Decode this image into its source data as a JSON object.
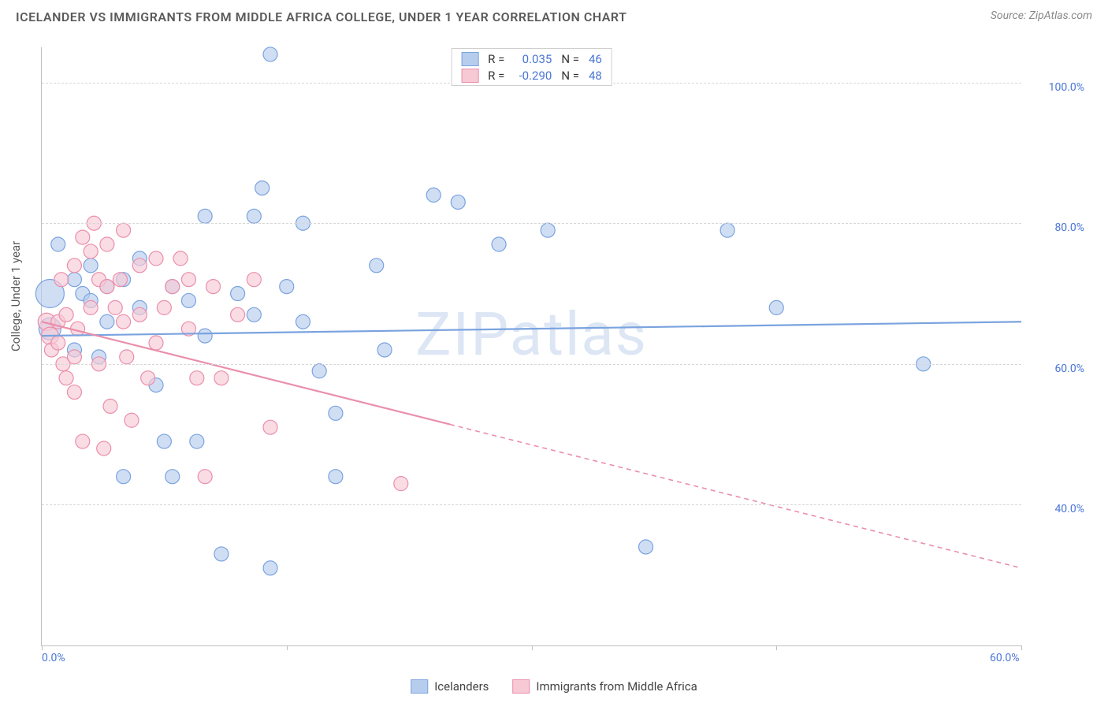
{
  "header": {
    "title": "ICELANDER VS IMMIGRANTS FROM MIDDLE AFRICA COLLEGE, UNDER 1 YEAR CORRELATION CHART",
    "source": "Source: ZipAtlas.com"
  },
  "watermark": "ZIPatlas",
  "chart": {
    "type": "scatter",
    "y_axis_title": "College, Under 1 year",
    "background_color": "#ffffff",
    "grid_color": "#d7d7d7",
    "axis_color": "#bfbfbf",
    "label_color": "#4a76d6",
    "xlim": [
      0,
      60
    ],
    "ylim": [
      20,
      105
    ],
    "x_ticks": [
      0,
      15,
      30,
      45,
      60
    ],
    "x_tick_labels": {
      "0": "0.0%",
      "60": "60.0%"
    },
    "y_gridlines": [
      40,
      60,
      80,
      100
    ],
    "y_tick_labels": {
      "40": "40.0%",
      "60": "60.0%",
      "80": "80.0%",
      "100": "100.0%"
    },
    "series": [
      {
        "key": "icelanders",
        "label": "Icelanders",
        "color_fill": "#b7cdee",
        "color_stroke": "#7aa3df",
        "marker_radius": 9,
        "r_value": "0.035",
        "n_value": "46",
        "trend": {
          "y_at_xmin": 64.0,
          "y_at_xmax": 66.0,
          "solid_until_x": 60
        },
        "points": [
          {
            "x": 0.5,
            "y": 70,
            "r": 18
          },
          {
            "x": 0.5,
            "y": 65,
            "r": 14
          },
          {
            "x": 1,
            "y": 77
          },
          {
            "x": 2,
            "y": 72
          },
          {
            "x": 2.5,
            "y": 70
          },
          {
            "x": 3,
            "y": 69
          },
          {
            "x": 3.5,
            "y": 61
          },
          {
            "x": 4,
            "y": 66
          },
          {
            "x": 4,
            "y": 71
          },
          {
            "x": 5,
            "y": 72
          },
          {
            "x": 5,
            "y": 44
          },
          {
            "x": 6,
            "y": 68
          },
          {
            "x": 7,
            "y": 57
          },
          {
            "x": 7.5,
            "y": 49
          },
          {
            "x": 8,
            "y": 44
          },
          {
            "x": 8,
            "y": 71
          },
          {
            "x": 9,
            "y": 69
          },
          {
            "x": 10,
            "y": 64
          },
          {
            "x": 10,
            "y": 81
          },
          {
            "x": 11,
            "y": 33
          },
          {
            "x": 12,
            "y": 70
          },
          {
            "x": 13,
            "y": 67
          },
          {
            "x": 13,
            "y": 81
          },
          {
            "x": 13.5,
            "y": 85
          },
          {
            "x": 14,
            "y": 31
          },
          {
            "x": 14,
            "y": 104
          },
          {
            "x": 15,
            "y": 71
          },
          {
            "x": 16,
            "y": 66
          },
          {
            "x": 16,
            "y": 80
          },
          {
            "x": 17,
            "y": 59
          },
          {
            "x": 18,
            "y": 44
          },
          {
            "x": 18,
            "y": 53
          },
          {
            "x": 20.5,
            "y": 74
          },
          {
            "x": 21,
            "y": 62
          },
          {
            "x": 24,
            "y": 84
          },
          {
            "x": 25.5,
            "y": 83
          },
          {
            "x": 28,
            "y": 77
          },
          {
            "x": 31,
            "y": 79
          },
          {
            "x": 37,
            "y": 34
          },
          {
            "x": 42,
            "y": 79
          },
          {
            "x": 45,
            "y": 68
          },
          {
            "x": 54,
            "y": 60
          },
          {
            "x": 2,
            "y": 62
          },
          {
            "x": 6,
            "y": 75
          },
          {
            "x": 9.5,
            "y": 49
          },
          {
            "x": 3,
            "y": 74
          }
        ]
      },
      {
        "key": "middle_africa",
        "label": "Immigrants from Middle Africa",
        "color_fill": "#f7c9d5",
        "color_stroke": "#ea8fab",
        "marker_radius": 9,
        "r_value": "-0.290",
        "n_value": "48",
        "trend": {
          "y_at_xmin": 66.0,
          "y_at_xmax": 31.0,
          "solid_until_x": 25
        },
        "points": [
          {
            "x": 0.3,
            "y": 66,
            "r": 11
          },
          {
            "x": 0.5,
            "y": 64,
            "r": 11
          },
          {
            "x": 0.6,
            "y": 62
          },
          {
            "x": 1,
            "y": 66
          },
          {
            "x": 1,
            "y": 63
          },
          {
            "x": 1.2,
            "y": 72
          },
          {
            "x": 1.3,
            "y": 60
          },
          {
            "x": 1.5,
            "y": 67
          },
          {
            "x": 1.5,
            "y": 58
          },
          {
            "x": 2,
            "y": 74
          },
          {
            "x": 2,
            "y": 61
          },
          {
            "x": 2,
            "y": 56
          },
          {
            "x": 2.2,
            "y": 65
          },
          {
            "x": 2.5,
            "y": 78
          },
          {
            "x": 2.5,
            "y": 49
          },
          {
            "x": 3,
            "y": 76
          },
          {
            "x": 3,
            "y": 68
          },
          {
            "x": 3.2,
            "y": 80
          },
          {
            "x": 3.5,
            "y": 60
          },
          {
            "x": 3.5,
            "y": 72
          },
          {
            "x": 3.8,
            "y": 48
          },
          {
            "x": 4,
            "y": 77
          },
          {
            "x": 4,
            "y": 71
          },
          {
            "x": 4.2,
            "y": 54
          },
          {
            "x": 4.5,
            "y": 68
          },
          {
            "x": 4.8,
            "y": 72
          },
          {
            "x": 5,
            "y": 79
          },
          {
            "x": 5,
            "y": 66
          },
          {
            "x": 5.2,
            "y": 61
          },
          {
            "x": 5.5,
            "y": 52
          },
          {
            "x": 6,
            "y": 67
          },
          {
            "x": 6,
            "y": 74
          },
          {
            "x": 6.5,
            "y": 58
          },
          {
            "x": 7,
            "y": 75
          },
          {
            "x": 7,
            "y": 63
          },
          {
            "x": 7.5,
            "y": 68
          },
          {
            "x": 8,
            "y": 71
          },
          {
            "x": 8.5,
            "y": 75
          },
          {
            "x": 9,
            "y": 65
          },
          {
            "x": 9,
            "y": 72
          },
          {
            "x": 9.5,
            "y": 58
          },
          {
            "x": 10,
            "y": 44
          },
          {
            "x": 10.5,
            "y": 71
          },
          {
            "x": 11,
            "y": 58
          },
          {
            "x": 12,
            "y": 67
          },
          {
            "x": 13,
            "y": 72
          },
          {
            "x": 14,
            "y": 51
          },
          {
            "x": 22,
            "y": 43
          }
        ]
      }
    ]
  },
  "legend_top": {
    "r_label": "R =",
    "n_label": "N ="
  },
  "legend_bottom": [
    {
      "swatch_fill": "#b7cdee",
      "swatch_stroke": "#7aa3df",
      "label": "Icelanders"
    },
    {
      "swatch_fill": "#f7c9d5",
      "swatch_stroke": "#ea8fab",
      "label": "Immigrants from Middle Africa"
    }
  ]
}
